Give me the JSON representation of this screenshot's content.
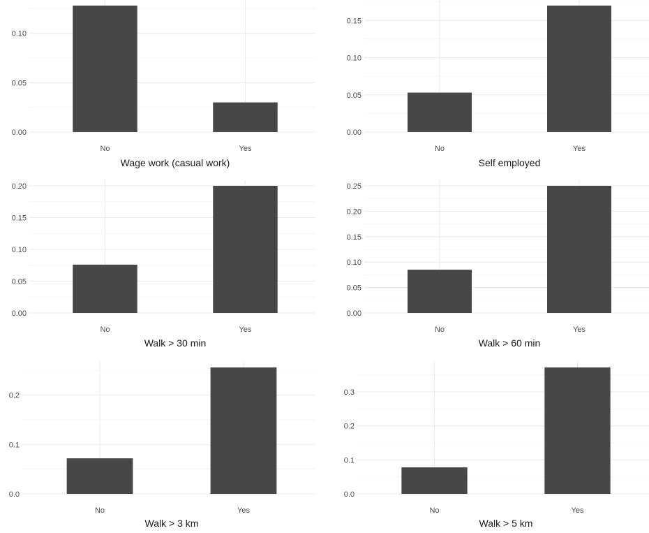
{
  "colors": {
    "bar": "#474747",
    "grid_major": "#ebebeb",
    "grid_minor": "#f3f3f3",
    "text": "#4d4d4d"
  },
  "chart_data": [
    {
      "type": "bar",
      "title": "",
      "xlabel": "Wage work (casual work)",
      "ylabel": "",
      "grid": true,
      "categories": [
        "No",
        "Yes"
      ],
      "values": [
        0.128,
        0.03
      ],
      "ylim": [
        0,
        0.128
      ],
      "yticks": [
        0.0,
        0.05,
        0.1
      ],
      "ytick_labels": [
        "0.00",
        "0.05",
        "0.10"
      ]
    },
    {
      "type": "bar",
      "title": "",
      "xlabel": "Self employed",
      "ylabel": "",
      "grid": true,
      "categories": [
        "No",
        "Yes"
      ],
      "values": [
        0.053,
        0.17
      ],
      "ylim": [
        0,
        0.17
      ],
      "yticks": [
        0.0,
        0.05,
        0.1,
        0.15
      ],
      "ytick_labels": [
        "0.00",
        "0.05",
        "0.10",
        "0.15"
      ]
    },
    {
      "type": "bar",
      "title": "",
      "xlabel": "Walk > 30 min",
      "ylabel": "",
      "grid": true,
      "categories": [
        "No",
        "Yes"
      ],
      "values": [
        0.076,
        0.2
      ],
      "ylim": [
        0,
        0.2
      ],
      "yticks": [
        0.0,
        0.05,
        0.1,
        0.15,
        0.2
      ],
      "ytick_labels": [
        "0.00",
        "0.05",
        "0.10",
        "0.15",
        "0.20"
      ]
    },
    {
      "type": "bar",
      "title": "",
      "xlabel": "Walk > 60 min",
      "ylabel": "",
      "grid": true,
      "categories": [
        "No",
        "Yes"
      ],
      "values": [
        0.085,
        0.25
      ],
      "ylim": [
        0,
        0.25
      ],
      "yticks": [
        0.0,
        0.05,
        0.1,
        0.15,
        0.2,
        0.25
      ],
      "ytick_labels": [
        "0.00",
        "0.05",
        "0.10",
        "0.15",
        "0.20",
        "0.25"
      ]
    },
    {
      "type": "bar",
      "title": "",
      "xlabel": "Walk > 3 km",
      "ylabel": "",
      "grid": true,
      "categories": [
        "No",
        "Yes"
      ],
      "values": [
        0.072,
        0.256
      ],
      "ylim": [
        0,
        0.256
      ],
      "yticks": [
        0.0,
        0.1,
        0.2
      ],
      "ytick_labels": [
        "0.0",
        "0.1",
        "0.2"
      ]
    },
    {
      "type": "bar",
      "title": "",
      "xlabel": "Walk > 5 km",
      "ylabel": "",
      "grid": true,
      "categories": [
        "No",
        "Yes"
      ],
      "values": [
        0.078,
        0.372
      ],
      "ylim": [
        0,
        0.372
      ],
      "yticks": [
        0.0,
        0.1,
        0.2,
        0.3
      ],
      "ytick_labels": [
        "0.0",
        "0.1",
        "0.2",
        "0.3"
      ]
    }
  ]
}
